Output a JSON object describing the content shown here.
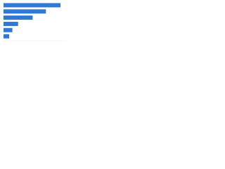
{
  "chart_data": {
    "type": "bar",
    "orientation": "horizontal",
    "categories": [
      null,
      null,
      null,
      null,
      null,
      null
    ],
    "values": [
      90,
      67,
      46,
      23,
      14,
      9
    ],
    "color": "#2f78d6",
    "xlim": [
      0,
      100
    ]
  }
}
